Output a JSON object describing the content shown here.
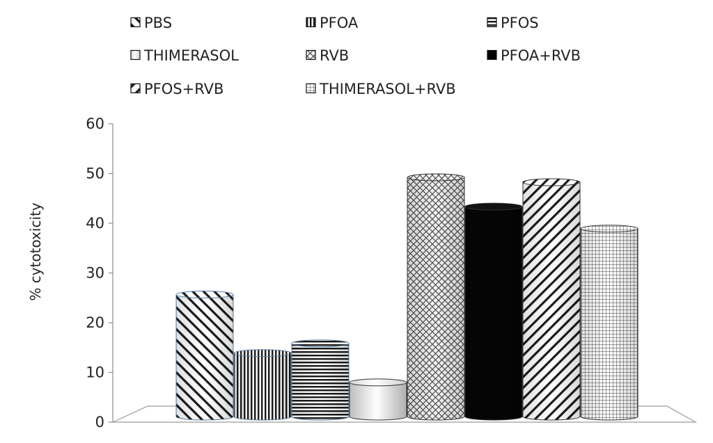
{
  "chart_data": {
    "type": "bar",
    "style": "3d-cylinder",
    "categories": [
      "PBS",
      "PFOA",
      "PFOS",
      "THIMERASOL",
      "RVB",
      "PFOA+RVB",
      "PFOS+RVB",
      "THIMERASOL+RVB"
    ],
    "values": [
      25,
      13,
      15,
      7,
      49,
      43,
      48,
      38.5
    ],
    "title": "",
    "xlabel": "",
    "ylabel": "% cytotoxicity",
    "ylim": [
      0,
      60
    ],
    "yticks": [
      "0",
      "10",
      "20",
      "30",
      "40",
      "50",
      "60"
    ],
    "grid": false,
    "legend": {
      "position": "top",
      "entries": [
        {
          "label": "PBS",
          "pattern": "diagonal-back"
        },
        {
          "label": "PFOA",
          "pattern": "vertical"
        },
        {
          "label": "PFOS",
          "pattern": "horizontal"
        },
        {
          "label": "THIMERASOL",
          "pattern": "none"
        },
        {
          "label": "RVB",
          "pattern": "lattice"
        },
        {
          "label": "PFOA+RVB",
          "pattern": "solid"
        },
        {
          "label": "PFOS+RVB",
          "pattern": "diagonal-forward"
        },
        {
          "label": "THIMERASOL+RVB",
          "pattern": "grid"
        }
      ]
    }
  }
}
